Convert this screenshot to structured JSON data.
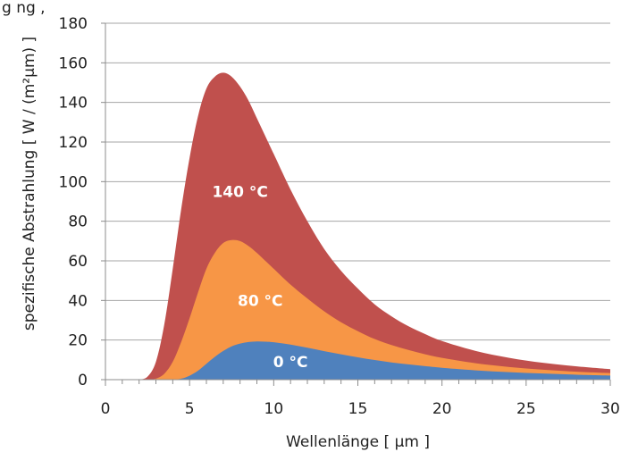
{
  "top_text": "g                                 ng ,",
  "chart_data": {
    "type": "area",
    "title": "",
    "xlabel": "Wellenlänge  [ µm ]",
    "ylabel": "spezifische Abstrahlung  [ W / (m²µm) ]",
    "xlim": [
      0,
      30
    ],
    "ylim": [
      0,
      180
    ],
    "x_ticks": [
      "0",
      "5",
      "10",
      "15",
      "20",
      "25",
      "30"
    ],
    "y_ticks": [
      "0",
      "20",
      "40",
      "60",
      "80",
      "100",
      "120",
      "140",
      "160",
      "180"
    ],
    "grid": true,
    "stacked": false,
    "x": [
      2,
      2.5,
      3,
      3.5,
      4,
      4.5,
      5,
      5.5,
      6,
      6.5,
      7,
      7.5,
      8,
      8.5,
      9,
      9.5,
      10,
      11,
      12,
      13,
      14,
      15,
      16,
      17,
      18,
      19,
      20,
      22,
      24,
      26,
      28,
      30
    ],
    "series": [
      {
        "label": "140 °C",
        "color": "#c0504d",
        "values": [
          0,
          1.5,
          9,
          28,
          56,
          86,
          112,
          133,
          147,
          153,
          155,
          153,
          148,
          141,
          132,
          123,
          114,
          96,
          80,
          66,
          55,
          46,
          38,
          32,
          27,
          23,
          19.5,
          14.5,
          11,
          8.5,
          6.7,
          5.3
        ]
      },
      {
        "label": "80 °C",
        "color": "#f79646",
        "values": [
          0,
          0,
          0.5,
          3,
          9,
          19,
          31,
          44,
          56,
          64,
          69,
          70.5,
          70,
          67.5,
          64,
          60,
          56,
          48,
          41,
          34.5,
          29,
          24.5,
          20.5,
          17.5,
          15,
          12.8,
          11,
          8.3,
          6.4,
          5,
          4,
          3.3
        ]
      },
      {
        "label": "0 °C",
        "color": "#4f81bd",
        "values": [
          0,
          0,
          0,
          0,
          0,
          0.5,
          2,
          4.5,
          8,
          11.5,
          14.5,
          16.8,
          18.2,
          19,
          19.3,
          19.2,
          18.9,
          17.7,
          16.1,
          14.4,
          12.8,
          11.3,
          9.9,
          8.7,
          7.7,
          6.8,
          6,
          4.7,
          3.8,
          3.1,
          2.5,
          2.1
        ]
      }
    ],
    "annotations": [
      {
        "text": "140 °C",
        "x": 8,
        "y": 95
      },
      {
        "text": "80 °C",
        "x": 9.2,
        "y": 40
      },
      {
        "text": "0 °C",
        "x": 11,
        "y": 9
      }
    ]
  }
}
